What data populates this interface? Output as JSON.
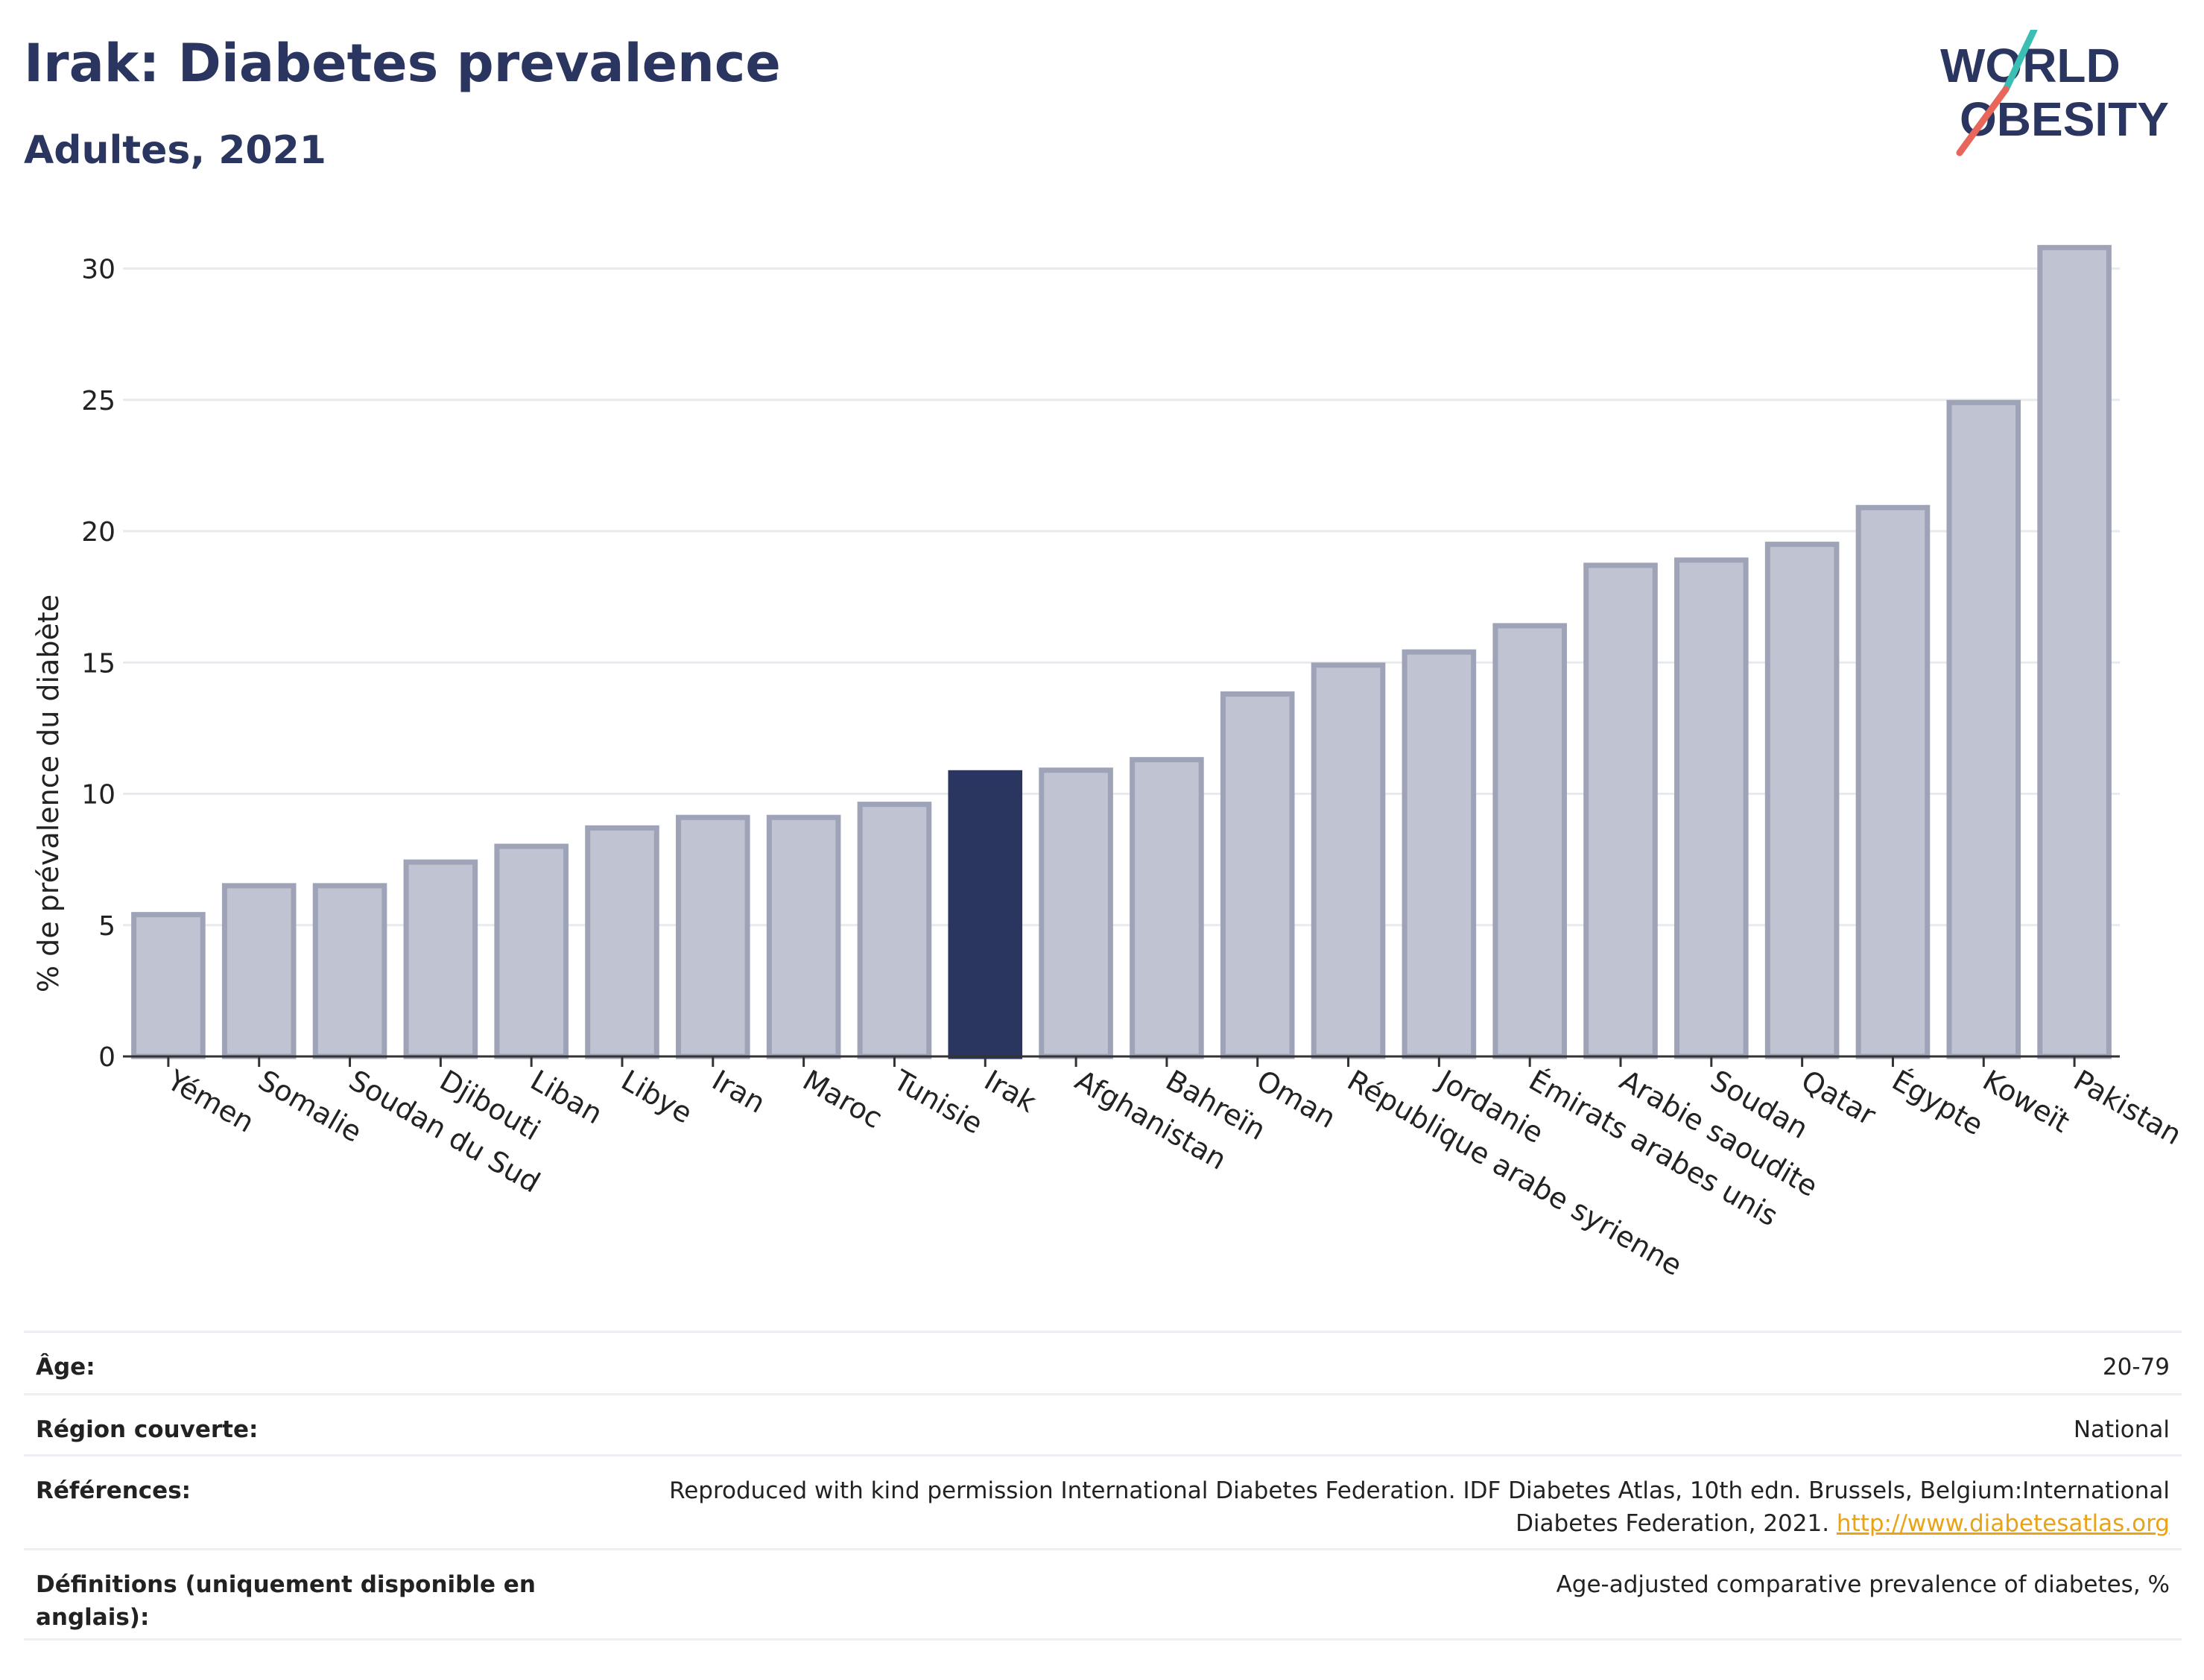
{
  "header": {
    "title": "Irak: Diabetes prevalence",
    "subtitle": "Adultes, 2021"
  },
  "logo": {
    "line1": "WORLD",
    "line2": "OBESITY",
    "colors": {
      "text": "#2a3560",
      "slash_top": "#3bbfb4",
      "slash_bottom": "#e8665a"
    }
  },
  "colors": {
    "bar_fill": "#c0c3d1",
    "bar_stroke": "#9ea3b8",
    "highlight_fill": "#2a3560",
    "grid": "#e8eaef",
    "axis": "#333333"
  },
  "chart_data": {
    "type": "bar",
    "title": "Irak: Diabetes prevalence",
    "subtitle": "Adultes, 2021",
    "xlabel": "",
    "ylabel": "% de prévalence du diabète",
    "ylim": [
      0,
      32
    ],
    "yticks": [
      0,
      5,
      10,
      15,
      20,
      25,
      30
    ],
    "grid": true,
    "highlight": "Irak",
    "categories": [
      "Yémen",
      "Somalie",
      "Soudan du Sud",
      "Djibouti",
      "Liban",
      "Libye",
      "Iran",
      "Maroc",
      "Tunisie",
      "Irak",
      "Afghanistan",
      "Bahreïn",
      "Oman",
      "République arabe syrienne",
      "Jordanie",
      "Émirats arabes unis",
      "Arabie saoudite",
      "Soudan",
      "Qatar",
      "Égypte",
      "Koweït",
      "Pakistan"
    ],
    "values": [
      5.4,
      6.5,
      6.5,
      7.4,
      8.0,
      8.7,
      9.1,
      9.1,
      9.6,
      10.8,
      10.9,
      11.3,
      13.8,
      14.9,
      15.4,
      16.4,
      18.7,
      18.9,
      19.5,
      20.9,
      24.9,
      30.8
    ]
  },
  "meta": [
    {
      "label": "Âge:",
      "value": "20-79"
    },
    {
      "label": "Région couverte:",
      "value": "National"
    },
    {
      "label": "Références:",
      "value": "Reproduced with kind permission International Diabetes Federation.  IDF Diabetes Atlas, 10th edn. Brussels, Belgium:International Diabetes Federation, 2021.",
      "link": "http://www.diabetesatlas.org"
    },
    {
      "label": "Définitions (uniquement disponible en anglais):",
      "value": "Age-adjusted comparative prevalence of diabetes, %"
    }
  ]
}
